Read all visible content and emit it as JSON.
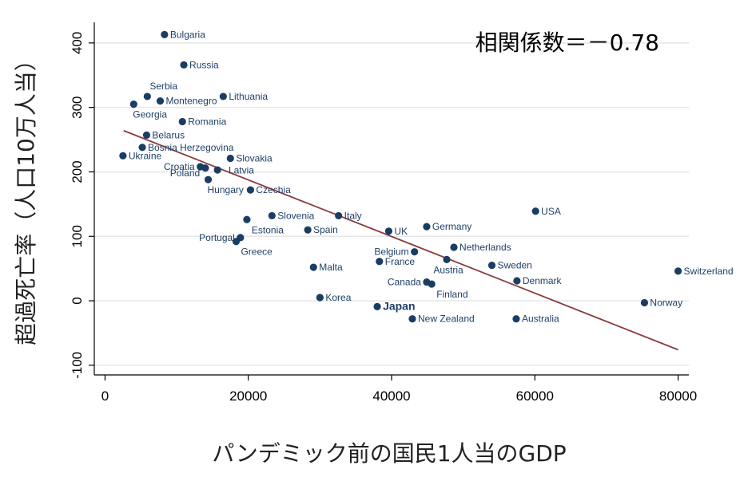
{
  "colors": {
    "marker": "#1a3d63",
    "label": "#1f3f66",
    "fit_line": "#8b3a3a",
    "grid": "#e6e6e6",
    "axis": "#000000"
  },
  "annotation": "相関係数＝－0.78",
  "chart_data": {
    "type": "scatter",
    "xlabel": "パンデミック前の国民1人当のGDP",
    "ylabel": "超過死亡率（人口10万人当）",
    "xlim": [
      -1500,
      81500
    ],
    "ylim": [
      -115,
      432
    ],
    "xticks": [
      0,
      20000,
      40000,
      60000,
      80000
    ],
    "yticks": [
      -100,
      0,
      100,
      200,
      300,
      400
    ],
    "xtick_labels": [
      "0",
      "20000",
      "40000",
      "60000",
      "80000"
    ],
    "ytick_labels": [
      "-100",
      "0",
      "100",
      "200",
      "300",
      "400"
    ],
    "grid": true,
    "correlation": -0.78,
    "fit_line": {
      "x": [
        2600,
        80000
      ],
      "y": [
        264,
        -76
      ]
    },
    "points": [
      {
        "name": "Bulgaria",
        "x": 8300,
        "y": 413,
        "side": "right"
      },
      {
        "name": "Russia",
        "x": 11000,
        "y": 366,
        "side": "right"
      },
      {
        "name": "Serbia",
        "x": 5900,
        "y": 317,
        "side": "above"
      },
      {
        "name": "Lithuania",
        "x": 16500,
        "y": 317,
        "side": "right"
      },
      {
        "name": "Montenegro",
        "x": 7700,
        "y": 310,
        "side": "right"
      },
      {
        "name": "Georgia",
        "x": 4000,
        "y": 305,
        "side": "below"
      },
      {
        "name": "Romania",
        "x": 10800,
        "y": 278,
        "side": "right"
      },
      {
        "name": "Belarus",
        "x": 5800,
        "y": 257,
        "side": "right"
      },
      {
        "name": "Bosnia Herzegovina",
        "x": 5200,
        "y": 238,
        "side": "right"
      },
      {
        "name": "Ukraine",
        "x": 2500,
        "y": 225,
        "side": "right"
      },
      {
        "name": "Slovakia",
        "x": 17500,
        "y": 221,
        "side": "right"
      },
      {
        "name": "Croatia",
        "x": 13300,
        "y": 208,
        "side": "left"
      },
      {
        "name": "Latvia",
        "x": 14000,
        "y": 206,
        "side": "right-far"
      },
      {
        "name": "Poland",
        "x": 15700,
        "y": 203,
        "side": "left-far"
      },
      {
        "name": "Hungary",
        "x": 14400,
        "y": 188,
        "side": "below"
      },
      {
        "name": "Czechia",
        "x": 20300,
        "y": 172,
        "side": "right"
      },
      {
        "name": "Slovenia",
        "x": 23300,
        "y": 132,
        "side": "right"
      },
      {
        "name": "Estonia",
        "x": 19800,
        "y": 126,
        "side": "below-right"
      },
      {
        "name": "Portugal",
        "x": 18900,
        "y": 98,
        "side": "left"
      },
      {
        "name": "Greece",
        "x": 18300,
        "y": 92,
        "side": "below-right"
      },
      {
        "name": "Spain",
        "x": 28300,
        "y": 110,
        "side": "right"
      },
      {
        "name": "Italy",
        "x": 32600,
        "y": 132,
        "side": "right"
      },
      {
        "name": "UK",
        "x": 39600,
        "y": 108,
        "side": "right"
      },
      {
        "name": "Germany",
        "x": 44900,
        "y": 115,
        "side": "right"
      },
      {
        "name": "USA",
        "x": 60100,
        "y": 139,
        "side": "right"
      },
      {
        "name": "Netherlands",
        "x": 48700,
        "y": 83,
        "side": "right"
      },
      {
        "name": "Belgium",
        "x": 43200,
        "y": 76,
        "side": "left"
      },
      {
        "name": "Malta",
        "x": 29100,
        "y": 52,
        "side": "right"
      },
      {
        "name": "France",
        "x": 38300,
        "y": 61,
        "side": "right"
      },
      {
        "name": "Austria",
        "x": 47700,
        "y": 64,
        "side": "below-left"
      },
      {
        "name": "Sweden",
        "x": 54000,
        "y": 55,
        "side": "right"
      },
      {
        "name": "Switzerland",
        "x": 80000,
        "y": 46,
        "side": "right"
      },
      {
        "name": "Canada",
        "x": 44900,
        "y": 29,
        "side": "left"
      },
      {
        "name": "Finland",
        "x": 45600,
        "y": 26,
        "side": "below-right"
      },
      {
        "name": "Denmark",
        "x": 57500,
        "y": 31,
        "side": "right"
      },
      {
        "name": "Korea",
        "x": 30000,
        "y": 5,
        "side": "right"
      },
      {
        "name": "Japan",
        "x": 38000,
        "y": -9,
        "side": "right",
        "bold": true
      },
      {
        "name": "Norway",
        "x": 75300,
        "y": -3,
        "side": "right"
      },
      {
        "name": "New Zealand",
        "x": 42900,
        "y": -28,
        "side": "right"
      },
      {
        "name": "Australia",
        "x": 57400,
        "y": -28,
        "side": "right"
      }
    ]
  }
}
